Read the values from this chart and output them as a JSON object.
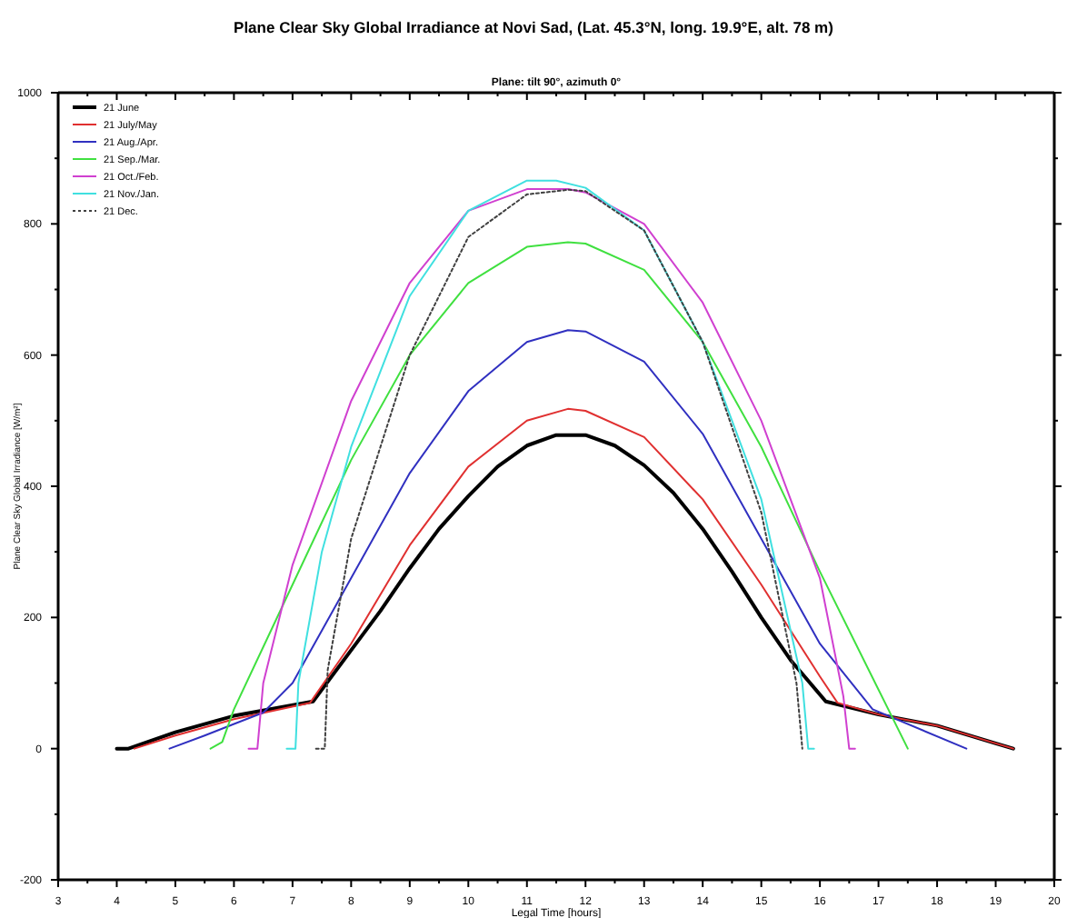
{
  "chart_data": {
    "type": "line",
    "title": "Plane Clear Sky Global Irradiance  at  Novi Sad, (Lat. 45.3°N, long. 19.9°E, alt. 78 m)",
    "subtitle": "Plane: tilt 90°, azimuth 0°",
    "xlabel": "Legal Time [hours]",
    "ylabel": "Plane Clear Sky Global Irradiance  [W/m²]",
    "xlim": [
      3,
      20
    ],
    "ylim": [
      -200,
      1000
    ],
    "xticks": [
      3,
      {
        "value": 3.5,
        "label": null
      },
      4,
      {
        "value": 4.5,
        "label": null
      },
      5,
      {
        "value": 5.5,
        "label": null
      },
      6,
      {
        "value": 6.5,
        "label": null
      },
      7,
      {
        "value": 7.5,
        "label": null
      },
      8,
      {
        "value": 8.5,
        "label": null
      },
      9,
      {
        "value": 9.5,
        "label": null
      },
      10,
      {
        "value": 10.5,
        "label": null
      },
      11,
      {
        "value": 11.5,
        "label": null
      },
      12,
      {
        "value": 12.5,
        "label": null
      },
      13,
      {
        "value": 13.5,
        "label": null
      },
      14,
      {
        "value": 14.5,
        "label": null
      },
      15,
      {
        "value": 15.5,
        "label": null
      },
      16,
      {
        "value": 16.5,
        "label": null
      },
      17,
      {
        "value": 17.5,
        "label": null
      },
      18,
      {
        "value": 18.5,
        "label": null
      },
      19,
      {
        "value": 19.5,
        "label": null
      },
      20
    ],
    "yticks": [
      -200,
      {
        "value": -100,
        "label": null
      },
      0,
      {
        "value": 100,
        "label": null
      },
      200,
      {
        "value": 300,
        "label": null
      },
      400,
      {
        "value": 500,
        "label": null
      },
      600,
      {
        "value": 700,
        "label": null
      },
      800,
      {
        "value": 900,
        "label": null
      },
      1000
    ],
    "grid": false,
    "legend": "top left",
    "marker": "none",
    "series": [
      {
        "name": "21 June",
        "color": "#000000",
        "line_style": "solid",
        "x": [
          4,
          4.2,
          5,
          6,
          7.35,
          8,
          8.5,
          9,
          9.5,
          10,
          10.5,
          11,
          11.5,
          12,
          12.5,
          13,
          13.5,
          14,
          14.5,
          15,
          15.5,
          16.1,
          17,
          18,
          19,
          19.3
        ],
        "values": [
          0,
          0,
          25,
          50,
          72,
          150,
          210,
          275,
          335,
          385,
          430,
          462,
          478,
          478,
          462,
          432,
          390,
          335,
          270,
          200,
          135,
          72,
          52,
          35,
          8,
          0
        ]
      },
      {
        "name": "21 July/May",
        "color": "#e03030",
        "line_style": "solid",
        "x": [
          4.3,
          5,
          6,
          7.3,
          8,
          9,
          10,
          11,
          11.7,
          12,
          13,
          14,
          15,
          16,
          16.3,
          17,
          18,
          19,
          19.3
        ],
        "values": [
          0,
          20,
          45,
          70,
          160,
          310,
          430,
          500,
          518,
          515,
          475,
          380,
          250,
          110,
          70,
          52,
          35,
          8,
          0
        ]
      },
      {
        "name": "21 Aug./Apr.",
        "color": "#3030c0",
        "line_style": "solid",
        "x": [
          4.9,
          5.5,
          6.5,
          7,
          8,
          9,
          10,
          11,
          11.7,
          12,
          13,
          14,
          15,
          16,
          16.9,
          18.5
        ],
        "values": [
          0,
          20,
          55,
          100,
          260,
          420,
          545,
          620,
          638,
          636,
          590,
          480,
          320,
          160,
          60,
          0
        ]
      },
      {
        "name": "21 Sep./Mar.",
        "color": "#40e040",
        "line_style": "solid",
        "x": [
          5.6,
          5.8,
          6,
          7,
          8,
          9,
          10,
          11,
          11.7,
          12,
          13,
          14,
          15,
          16,
          17,
          17.5
        ],
        "values": [
          0,
          10,
          60,
          250,
          440,
          600,
          710,
          765,
          772,
          770,
          730,
          620,
          460,
          270,
          90,
          0
        ]
      },
      {
        "name": "21 Oct./Feb.",
        "color": "#d040d0",
        "line_style": "solid",
        "x": [
          6.25,
          6.4,
          6.5,
          7,
          8,
          9,
          10,
          11,
          11.7,
          12,
          13,
          14,
          15,
          16,
          16.4,
          16.5,
          16.6
        ],
        "values": [
          0,
          0,
          100,
          280,
          530,
          710,
          820,
          853,
          853,
          848,
          800,
          680,
          500,
          260,
          80,
          0,
          0
        ]
      },
      {
        "name": "21 Nov./Jan.",
        "color": "#40e0e0",
        "line_style": "solid",
        "x": [
          6.9,
          7.05,
          7.1,
          7.5,
          8,
          9,
          10,
          11,
          11.5,
          12,
          13,
          14,
          15,
          15.7,
          15.8,
          15.9
        ],
        "values": [
          0,
          0,
          100,
          300,
          460,
          690,
          820,
          866,
          866,
          855,
          790,
          620,
          380,
          100,
          0,
          0
        ]
      },
      {
        "name": "21 Dec.",
        "color": "#404040",
        "line_style": "dotted",
        "x": [
          7.4,
          7.55,
          7.6,
          8,
          9,
          10,
          11,
          11.7,
          12,
          13,
          14,
          15,
          15.6,
          15.7
        ],
        "values": [
          0,
          0,
          120,
          320,
          600,
          780,
          845,
          852,
          850,
          790,
          620,
          360,
          100,
          0
        ]
      }
    ]
  }
}
